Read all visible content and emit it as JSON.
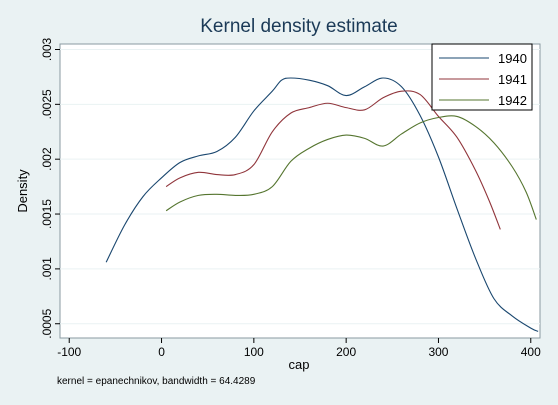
{
  "chart_data": {
    "type": "line",
    "title": "Kernel density estimate",
    "xlabel": "cap",
    "ylabel": "Density",
    "note": "kernel = epanechnikov, bandwidth = 64.4289",
    "xlim": [
      -110,
      410
    ],
    "ylim": [
      0.00037,
      0.00305
    ],
    "x_ticks": [
      -100,
      0,
      100,
      200,
      300,
      400
    ],
    "x_tick_labels": [
      "-100",
      "0",
      "100",
      "200",
      "300",
      "400"
    ],
    "y_ticks": [
      0.0005,
      0.001,
      0.0015,
      0.002,
      0.0025,
      0.003
    ],
    "y_tick_labels": [
      ".0005",
      ".001",
      ".0015",
      ".002",
      ".0025",
      ".003"
    ],
    "legend_position": "top-right",
    "series": [
      {
        "name": "1940",
        "color": "#1a476f",
        "x": [
          -60,
          -40,
          -20,
          0,
          20,
          40,
          60,
          80,
          100,
          120,
          130,
          140,
          160,
          180,
          200,
          220,
          240,
          260,
          280,
          300,
          320,
          340,
          360,
          380,
          400,
          408
        ],
        "y": [
          0.00106,
          0.0014,
          0.00166,
          0.00183,
          0.00197,
          0.00203,
          0.00207,
          0.0022,
          0.00244,
          0.00262,
          0.00272,
          0.00274,
          0.00272,
          0.00267,
          0.00258,
          0.00266,
          0.00274,
          0.00266,
          0.0024,
          0.00202,
          0.00155,
          0.0011,
          0.00073,
          0.00057,
          0.00046,
          0.00043
        ]
      },
      {
        "name": "1941",
        "color": "#90353b",
        "x": [
          5,
          20,
          40,
          60,
          80,
          100,
          120,
          140,
          160,
          180,
          200,
          220,
          240,
          260,
          280,
          300,
          320,
          340,
          355,
          367
        ],
        "y": [
          0.00175,
          0.00183,
          0.00188,
          0.00186,
          0.00186,
          0.00195,
          0.00225,
          0.00242,
          0.00247,
          0.00251,
          0.00247,
          0.00245,
          0.00256,
          0.00262,
          0.00259,
          0.00239,
          0.0022,
          0.0019,
          0.00162,
          0.00136
        ]
      },
      {
        "name": "1942",
        "color": "#55752f",
        "x": [
          5,
          20,
          40,
          60,
          80,
          100,
          120,
          140,
          160,
          180,
          200,
          220,
          240,
          260,
          280,
          300,
          320,
          340,
          360,
          380,
          395,
          406
        ],
        "y": [
          0.00153,
          0.00161,
          0.00167,
          0.00168,
          0.00167,
          0.00168,
          0.00175,
          0.00198,
          0.0021,
          0.00218,
          0.00222,
          0.00219,
          0.00212,
          0.00223,
          0.00233,
          0.00238,
          0.00239,
          0.0023,
          0.00215,
          0.00193,
          0.0017,
          0.00145
        ]
      }
    ]
  }
}
